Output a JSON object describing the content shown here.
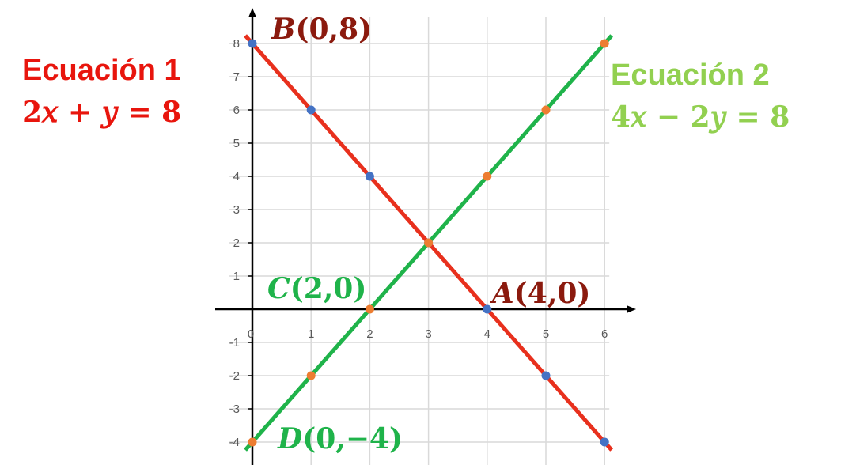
{
  "equation1": {
    "title": "Ecuación 1",
    "formula": "2𝑥 +  𝑦 = 8",
    "color": "#e8150d"
  },
  "equation2": {
    "title": "Ecuación 2",
    "formula": "4𝑥 − 2𝑦 = 8",
    "color": "#92d050"
  },
  "chart_data": {
    "type": "line",
    "xlim": [
      0,
      6
    ],
    "ylim": [
      -4,
      8
    ],
    "x_ticks": [
      "0",
      "1",
      "2",
      "3",
      "4",
      "5",
      "6"
    ],
    "y_ticks": [
      "-4",
      "-3",
      "-2",
      "-1",
      "1",
      "2",
      "3",
      "4",
      "5",
      "6",
      "7",
      "8"
    ],
    "grid": true,
    "series": [
      {
        "line_color": "#e8301d",
        "marker_color": "#4472c4",
        "x": [
          0,
          1,
          2,
          3,
          4,
          5,
          6
        ],
        "y": [
          8,
          6,
          4,
          2,
          0,
          -2,
          -4
        ]
      },
      {
        "line_color": "#1fb34a",
        "marker_color": "#ed7d31",
        "x": [
          0,
          1,
          2,
          3,
          4,
          5,
          6
        ],
        "y": [
          -4,
          -2,
          0,
          2,
          4,
          6,
          8
        ]
      }
    ],
    "annotations": [
      {
        "name": "B",
        "coords": "(0,8)",
        "x": 0,
        "y": 8,
        "color": "#8b1a0e",
        "anchor": "top-right"
      },
      {
        "name": "A",
        "coords": "(4,0)",
        "x": 4,
        "y": 0,
        "color": "#8b1a0e",
        "anchor": "top-right"
      },
      {
        "name": "C",
        "coords": "(2,0)",
        "x": 2,
        "y": 0,
        "color": "#1fb34a",
        "anchor": "top-left"
      },
      {
        "name": "D",
        "coords": "(0,−4)",
        "x": 0,
        "y": -4,
        "color": "#1fb34a",
        "anchor": "top-right"
      }
    ]
  }
}
